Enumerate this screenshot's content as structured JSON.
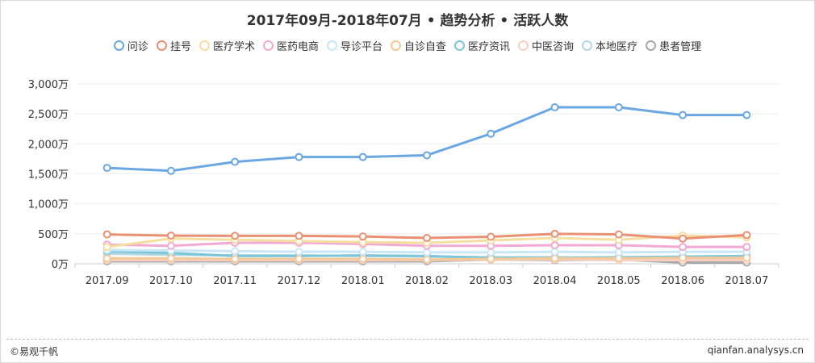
{
  "title": "2017年09月-2018年07月 • 趋势分析 • 活跃人数",
  "footer": {
    "source": "©易观千帆",
    "url": "qianfan.analysys.cn"
  },
  "chart_data": {
    "type": "line",
    "title": "2017年09月-2018年07月 • 趋势分析 • 活跃人数",
    "categories": [
      "2017.09",
      "2017.10",
      "2017.11",
      "2017.12",
      "2018.01",
      "2018.02",
      "2018.03",
      "2018.04",
      "2018.05",
      "2018.06",
      "2018.07"
    ],
    "y_ticks": [
      "0万",
      "500万",
      "1,000万",
      "1,500万",
      "2,000万",
      "2,500万",
      "3,000万"
    ],
    "ylim": [
      0,
      3000
    ],
    "grid": true,
    "legend_position": "top-center",
    "series": [
      {
        "name": "问诊",
        "color": "#6aa7e3",
        "values": [
          1600,
          1550,
          1700,
          1780,
          1780,
          1810,
          2170,
          2610,
          2610,
          2480,
          2480
        ]
      },
      {
        "name": "挂号",
        "color": "#ea9174",
        "values": [
          490,
          470,
          465,
          465,
          455,
          430,
          450,
          500,
          490,
          420,
          480
        ]
      },
      {
        "name": "医疗学术",
        "color": "#f5dfa0",
        "values": [
          280,
          420,
          400,
          380,
          360,
          350,
          390,
          430,
          400,
          470,
          440
        ]
      },
      {
        "name": "医药电商",
        "color": "#f2a9d3",
        "values": [
          320,
          300,
          350,
          350,
          330,
          300,
          300,
          310,
          310,
          280,
          280
        ]
      },
      {
        "name": "导诊平台",
        "color": "#c9e6f7",
        "values": [
          230,
          220,
          210,
          200,
          200,
          190,
          190,
          200,
          190,
          200,
          200
        ]
      },
      {
        "name": "自诊自查",
        "color": "#f4c99a",
        "values": [
          90,
          90,
          80,
          80,
          80,
          70,
          80,
          90,
          90,
          100,
          100
        ]
      },
      {
        "name": "医疗资讯",
        "color": "#7cc6d8",
        "values": [
          210,
          180,
          130,
          130,
          140,
          130,
          100,
          100,
          110,
          120,
          130
        ]
      },
      {
        "name": "中医咨询",
        "color": "#f7cfc4",
        "values": [
          60,
          60,
          60,
          60,
          60,
          60,
          70,
          70,
          60,
          60,
          60
        ]
      },
      {
        "name": "本地医疗",
        "color": "#b3d6e3",
        "values": [
          170,
          150,
          140,
          140,
          130,
          120,
          110,
          110,
          100,
          100,
          90
        ]
      },
      {
        "name": "患者管理",
        "color": "#a8a8a8",
        "values": [
          40,
          40,
          40,
          40,
          40,
          40,
          70,
          60,
          70,
          20,
          20
        ]
      }
    ]
  }
}
